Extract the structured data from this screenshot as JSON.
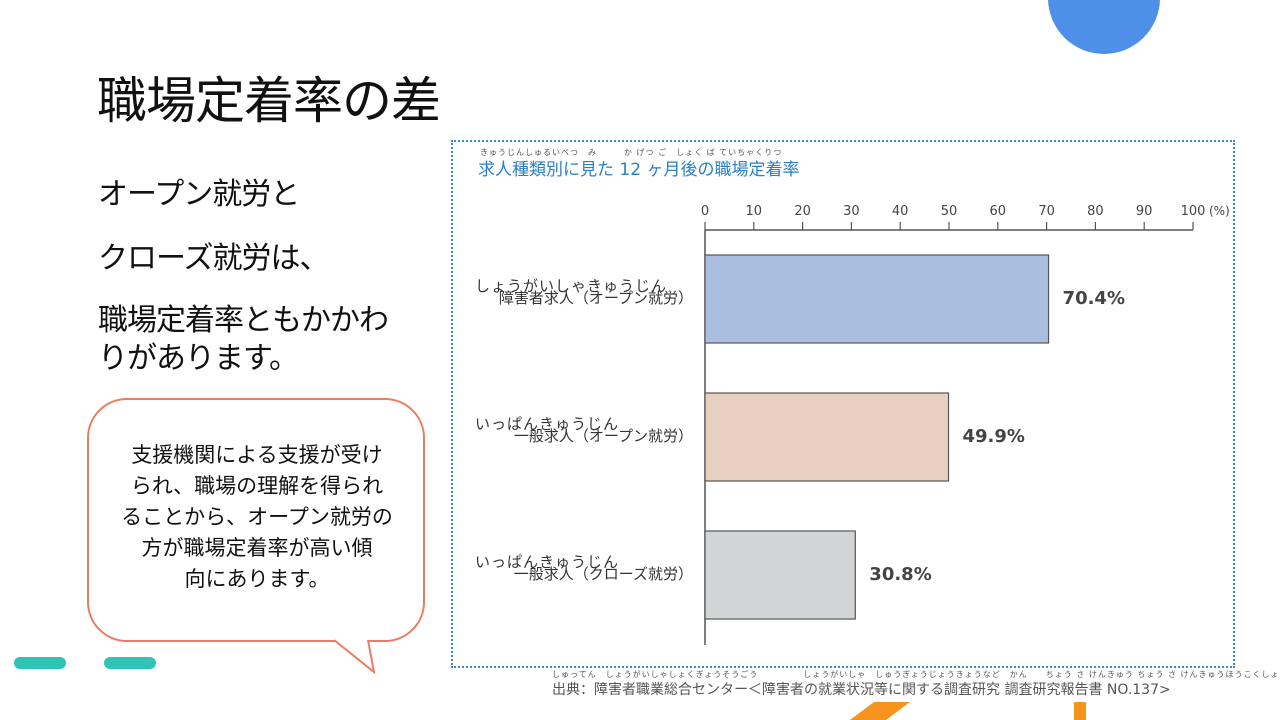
{
  "title": "職場定着率の差",
  "body_lines": [
    "オープン就労と",
    "クローズ就労は、",
    "職場定着率ともかかわ",
    "りがあります。"
  ],
  "callout_lines": [
    "支援機関による支援が受け",
    "られ、職場の理解を得られ",
    "ることから、オープン就労の",
    "方が職場定着率が高い傾",
    "向にあります。"
  ],
  "colors": {
    "circle": "#4e8fe8",
    "teal": "#2ec4b6",
    "orange": "#f7941d",
    "callout_border": "#ec7b63",
    "chart_title": "#2a7fc8"
  },
  "chart_data": {
    "type": "bar",
    "orientation": "horizontal",
    "title": "求人種類別に見た 12 ヶ月後の職場定着率",
    "title_furigana": "きゅうじんしゅるいべつ　み　　　か げつ ご　しょく ば ていちゃくりつ",
    "xlim": [
      0,
      100
    ],
    "xticks": [
      "0",
      "10",
      "20",
      "30",
      "40",
      "50",
      "60",
      "70",
      "80",
      "90",
      "100"
    ],
    "unit": "(%)",
    "categories": [
      "障害者求人（オープン就労）",
      "一般求人（オープン就労）",
      "一般求人（クローズ就労）"
    ],
    "category_furigana": [
      "しょうがいしゃきゅうじん　　　　　　しゅうろう",
      "いっぱんきゅうじん　　　　　　しゅうろう",
      "いっぱんきゅうじん　　　　　　しゅうろう"
    ],
    "values": [
      70.4,
      49.9,
      30.8
    ],
    "labels": [
      "70.4%",
      "49.9%",
      "30.8%"
    ],
    "bar_colors": [
      "#aabfe0",
      "#e8d0c0",
      "#d3d4d6"
    ]
  },
  "source": "出典：障害者職業総合センター＜障害者の就業状況等に関する調査研究 調査研究報告書 NO.137>",
  "source_furigana": "しゅってん　しょうがいしゃしょくぎょうそうごう　　　　　しょうがいしゃ　しゅうぎょうじょうきょうなど　かん　　ちょう さ けんきゅう ちょう さ けんきゅうほうこくしょ"
}
